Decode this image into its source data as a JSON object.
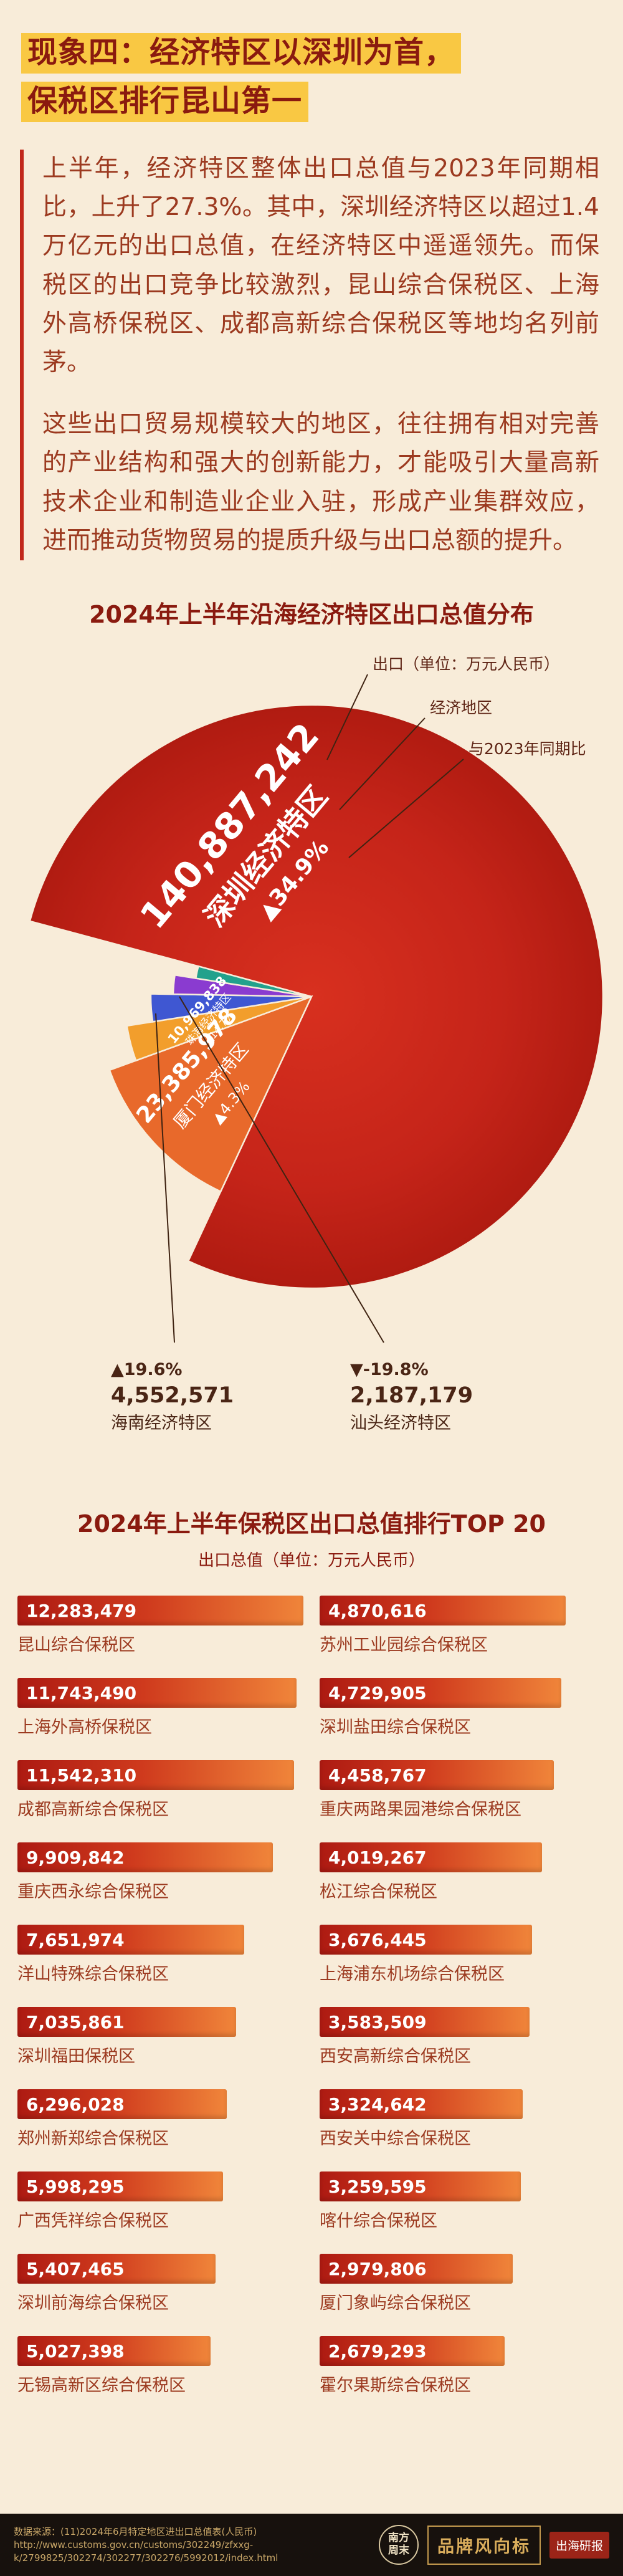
{
  "header": {
    "title_line1": "现象四：经济特区以深圳为首，",
    "title_line2": "保税区排行昆山第一"
  },
  "intro": {
    "paragraphs": [
      "上半年，经济特区整体出口总值与2023年同期相比，上升了27.3%。其中，深圳经济特区以超过1.4万亿元的出口总值，在经济特区中遥遥领先。而保税区的出口竞争比较激烈，昆山综合保税区、上海外高桥保税区、成都高新综合保税区等地均名列前茅。",
      "这些出口贸易规模较大的地区，往往拥有相对完善的产业结构和强大的创新能力，才能吸引大量高新技术企业和制造业企业入驻，形成产业集群效应，进而推动货物贸易的提质升级与出口总额的提升。"
    ]
  },
  "chart_data": [
    {
      "type": "pie",
      "title": "2024年上半年沿海经济特区出口总值分布",
      "unit": "万元人民币",
      "legend_callouts": [
        "出口（单位：万元人民币）",
        "经济地区",
        "与2023年同期比"
      ],
      "series": [
        {
          "name": "深圳经济特区",
          "value": 140887242,
          "yoy": "▲34.9%",
          "color": "#c7231b",
          "label_style": "inside-large"
        },
        {
          "name": "厦门经济特区",
          "value": 23385978,
          "yoy": "▲4.3%",
          "color": "#e8692b",
          "label_style": "inside-medium"
        },
        {
          "name": "珠海经济特区",
          "value": 10969838,
          "yoy": "▲14.7%",
          "color": "#f29e2c",
          "label_style": "inside-small"
        },
        {
          "name": "海南经济特区",
          "value": 4552571,
          "yoy": "▲19.6%",
          "color": "#3f57d2",
          "label_style": "callout-left"
        },
        {
          "name": "汕头经济特区",
          "value": 2187179,
          "yoy": "▼-19.8%",
          "color": "#8a3bd0",
          "label_style": "callout-right"
        }
      ]
    },
    {
      "type": "bar",
      "title": "2024年上半年保税区出口总值排行TOP 20",
      "subtitle": "出口总值（单位：万元人民币）",
      "unit": "万元人民币",
      "columns": [
        [
          {
            "name": "昆山综合保税区",
            "value": 12283479
          },
          {
            "name": "上海外高桥保税区",
            "value": 11743490
          },
          {
            "name": "成都高新综合保税区",
            "value": 11542310
          },
          {
            "name": "重庆西永综合保税区",
            "value": 9909842
          },
          {
            "name": "洋山特殊综合保税区",
            "value": 7651974
          },
          {
            "name": "深圳福田保税区",
            "value": 7035861
          },
          {
            "name": "郑州新郑综合保税区",
            "value": 6296028
          },
          {
            "name": "广西凭祥综合保税区",
            "value": 5998295
          },
          {
            "name": "深圳前海综合保税区",
            "value": 5407465
          },
          {
            "name": "无锡高新区综合保税区",
            "value": 5027398
          }
        ],
        [
          {
            "name": "苏州工业园综合保税区",
            "value": 4870616
          },
          {
            "name": "深圳盐田综合保税区",
            "value": 4729905
          },
          {
            "name": "重庆两路果园港综合保税区",
            "value": 4458767
          },
          {
            "name": "松江综合保税区",
            "value": 4019267
          },
          {
            "name": "上海浦东机场综合保税区",
            "value": 3676445
          },
          {
            "name": "西安高新综合保税区",
            "value": 3583509
          },
          {
            "name": "西安关中综合保税区",
            "value": 3324642
          },
          {
            "name": "喀什综合保税区",
            "value": 3259595
          },
          {
            "name": "厦门象屿综合保税区",
            "value": 2979806
          },
          {
            "name": "霍尔果斯综合保税区",
            "value": 2679293
          }
        ]
      ]
    }
  ],
  "footer": {
    "source_lines": [
      "数据来源：(11)2024年6月特定地区进出口总值表(人民币)",
      "http://www.customs.gov.cn/customs/302249/zfxxg-",
      "k/2799825/302274/302277/302276/5992012/index.html"
    ],
    "seal_line1": "南方",
    "seal_line2": "周末",
    "brand_text": "品牌风向标",
    "report_tag": "出海研报"
  },
  "colors": {
    "page_bg": "#f8ecd9",
    "title_text": "#8a1a0f",
    "title_highlight": "#f9c843",
    "body_text": "#9c3a20",
    "accent_red": "#c1271b",
    "bar_gradient_start": "#ad1a12",
    "bar_gradient_end": "#f0853a",
    "footer_bg": "#17110d",
    "footer_gold": "#c7a567"
  }
}
